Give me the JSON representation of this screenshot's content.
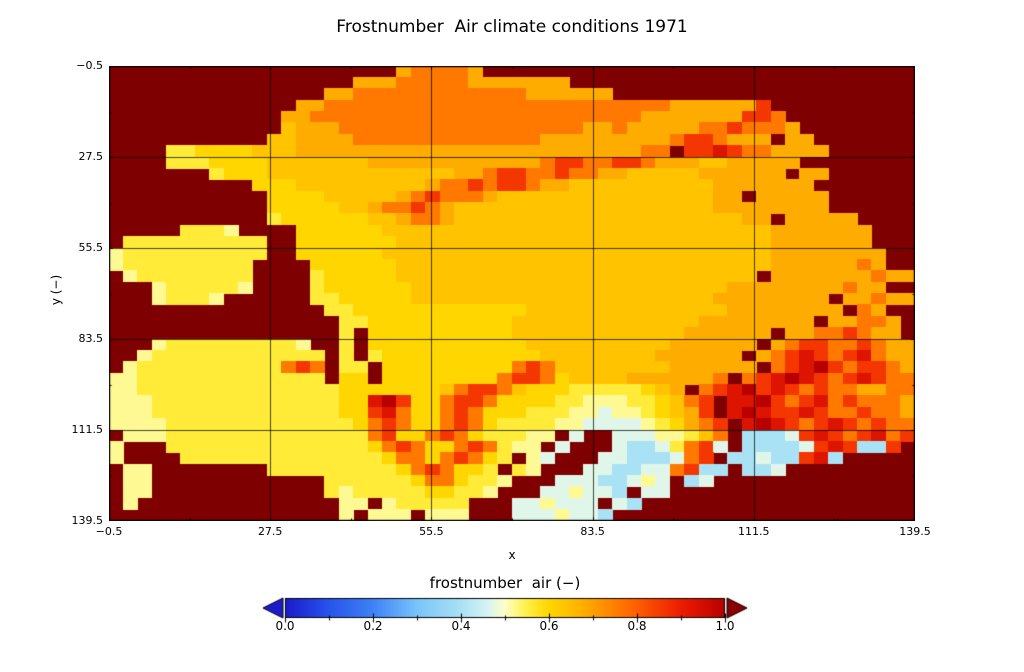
{
  "title": "Frostnumber  Air climate conditions 1971",
  "axes": {
    "x": {
      "label": "x",
      "range": [
        -0.5,
        139.5
      ],
      "ticks": [
        "−0.5",
        "27.5",
        "55.5",
        "83.5",
        "111.5",
        "139.5"
      ],
      "tick_values": [
        -0.5,
        27.5,
        55.5,
        83.5,
        111.5,
        139.5
      ],
      "minor_tick_values": [
        13.5,
        41.5,
        69.5,
        97.5,
        125.5
      ]
    },
    "y": {
      "label": "y (−)",
      "range": [
        -0.5,
        139.5
      ],
      "ticks": [
        "−0.5",
        "27.5",
        "55.5",
        "83.5",
        "111.5",
        "139.5"
      ],
      "tick_values": [
        -0.5,
        27.5,
        55.5,
        83.5,
        111.5,
        139.5
      ],
      "minor_tick_values": [
        13.5,
        41.5,
        69.5,
        97.5,
        125.5
      ]
    }
  },
  "colorbar": {
    "label": "frostnumber  air (−)",
    "ticks": [
      "0.0",
      "0.2",
      "0.4",
      "0.6",
      "0.8",
      "1.0"
    ],
    "tick_values": [
      0.0,
      0.2,
      0.4,
      0.6,
      0.8,
      1.0
    ],
    "minor_tick_values": [
      0.1,
      0.3,
      0.5,
      0.7,
      0.9
    ],
    "range": [
      0.0,
      1.0
    ],
    "extend_under_color": "#1c1ccd",
    "extend_over_color": "#8b0000"
  },
  "colors": {
    "background": "#ffffff",
    "ocean_masked": "#7f0000",
    "gridline": "#000000",
    "frame": "#000000",
    "text": "#000000"
  },
  "chart_data": {
    "type": "heatmap",
    "title": "Frostnumber  Air climate conditions 1971",
    "xlabel": "x",
    "ylabel": "y (−)",
    "xlim": [
      -0.5,
      139.5
    ],
    "ylim": [
      139.5,
      -0.5
    ],
    "value_name": "frostnumber air (-)",
    "value_range": [
      0.0,
      1.0
    ],
    "grid_on": true,
    "legend_position": "horizontal colorbar at bottom with over/under extend arrows",
    "description": "Masked raster of air frost number over an Alaska-shaped grid; masked ocean cells render as dark red (over-range color); land mostly 0.5-0.7 (yellow-orange), northern band 0.7-0.8 (orange), mountain ranges 0.85-1.0 (red speckles), southern coast 0.40-0.47 (light blue/pale).",
    "grid_cols": 56,
    "grid_rows": 40,
    "value_map": {
      ".": null,
      "1": 0.4,
      "2": 0.47,
      "3": 0.52,
      "4": 0.56,
      "5": 0.6,
      "6": 0.64,
      "7": 0.68,
      "8": 0.76,
      "9": 0.86,
      "A": 0.93,
      "B": 1.0
    },
    "rows": [
      "....................788887",
      ".................777888887777777",
      "...............77888888888888777777",
      ".............778888888888888888888888887777779",
      "............77888888888888888888888887777777998",
      "............677788888888888888888778777778898887",
      "...........66777788888888888887777777778998777 77",
      "....44555566677777777777777777777777788 99A9887777",
      "....44455556666666777777777777899889987776677777",
      ".......4555666666666666677899889887766666777777 77",
      "..........555666666666788989987766666666667777777",
      "...........555566666789888766666666666666677 77777",
      "...........555556678898766666666666666666677777777",
      "...........45555556678876666666666666666666677 77777",
      ".....4443....5555556666666666666666666666666667777777",
      ".4444444444..5555555666666666666666666666666667777777",
      "34444444444..55555566666666666666666666666666677777777",
      "3444444444....5555556666666666666666666666666677777787",
      ".344444444....4555556666666666666666666666666 7777777877",
      "...3444443....4555555666666666666666666666677777777877",
      "...34443......445555566666666666666666666677777777 77877",
      "...............445555555555556666666666666677777777 87",
      "................445555555555666666666666677777777 77887",
      "................4.5555555555666666666666777777 77889877",
      "...34444444443..4.555555555556666666666777777 7899889877",
      "..3444444444444.4.45555555555566666666777777 789A989A877",
      ".34444444444898 44.55555555589866666666777777 89AB98998778",
      "334444444444444 55.555555558998566667777778 89ABA989A98878",
      "3344444444444444555555568998655544444567 89AB9A9898877887",
      "333444444444444455AB9558998555544333445689 AAB989A8988877",
      "3334444444444444559A8558985554443323345679 ABA99A98898877",
      "3333444444444444458985589854444332222345789 ABA989A989887",
      ".333444444444444448955898544433 2..22233468 11129A989A8988",
      "3...44444444444444589855898433 2...21124892 111129A9119...",
      "3....44444444444444588589854 32...22111289 112119A1.......",
      ".33........4444444445898554 43...2211228911 112...........",
      ".33............4444445885443...22211232 12...............",
      ".33............434444455443...223221 22..................",
      ".3..............33.344444...223222 21....................",
      "................3.333.333...2223221....................."
    ],
    "colormap_stops": [
      [
        0.0,
        "#1a1ace"
      ],
      [
        0.1,
        "#2854eb"
      ],
      [
        0.2,
        "#3e82f6"
      ],
      [
        0.3,
        "#7ac4fa"
      ],
      [
        0.4,
        "#aae2f5"
      ],
      [
        0.46,
        "#d6f3f2"
      ],
      [
        0.5,
        "#ffffc8"
      ],
      [
        0.55,
        "#fff046"
      ],
      [
        0.6,
        "#ffd600"
      ],
      [
        0.65,
        "#ffbe00"
      ],
      [
        0.7,
        "#ffa000"
      ],
      [
        0.8,
        "#ff5e00"
      ],
      [
        0.9,
        "#ec1c00"
      ],
      [
        1.0,
        "#b90000"
      ]
    ]
  }
}
